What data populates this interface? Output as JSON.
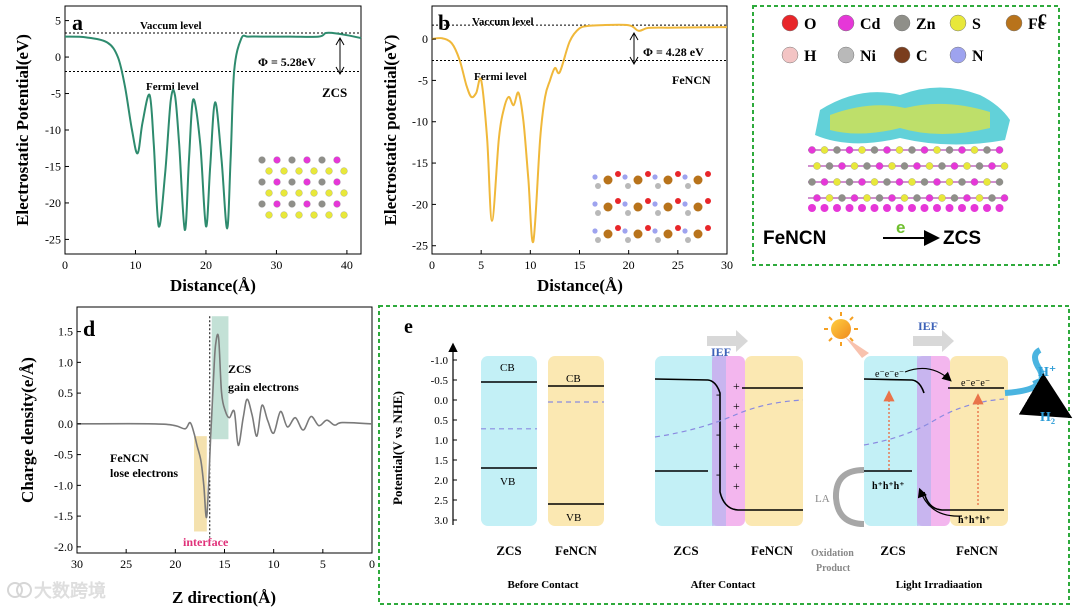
{
  "watermark": "大数跨境",
  "chart_data": [
    {
      "panel": "a",
      "type": "line",
      "xlabel": "Distance(Å)",
      "ylabel": "Electrostatic Potential(eV)",
      "xlim": [
        0,
        42
      ],
      "ylim": [
        -27,
        7
      ],
      "xticks": [
        "0",
        "10",
        "20",
        "30",
        "40"
      ],
      "yticks": [
        "-25",
        "-20",
        "-15",
        "-10",
        "-5",
        "0",
        "5"
      ],
      "annotations": {
        "vacuum": "Vaccum level",
        "fermi": "Fermi level",
        "work_function": "Φ = 5.28eV",
        "material": "ZCS"
      },
      "vacuum_level": 3.3,
      "fermi_level": -1.98,
      "color": "#2e8b6e",
      "x": [
        0,
        3,
        6,
        7.5,
        8.5,
        9.5,
        10.3,
        11,
        12,
        12.6,
        13.3,
        14.2,
        15,
        15.6,
        16.2,
        17,
        17.6,
        18.2,
        19.2,
        20,
        20.6,
        21.3,
        22.2,
        23,
        23.5,
        24,
        25,
        26,
        28,
        32,
        36,
        37,
        38,
        40,
        42
      ],
      "y": [
        2.8,
        2.7,
        2,
        0,
        -4,
        -10,
        -13.2,
        -9,
        -5.2,
        -12,
        -23.2,
        -16,
        -6,
        -5.2,
        -12,
        -23.7,
        -14,
        -5.8,
        -12,
        -23.2,
        -15,
        -6.2,
        -14,
        -23.5,
        -14,
        -2,
        2.5,
        2.8,
        2.8,
        2.8,
        2.8,
        3.3,
        3.3,
        3.0,
        2.6
      ]
    },
    {
      "panel": "b",
      "type": "line",
      "xlabel": "Distance(Å)",
      "ylabel": "Electrostatic potential(eV)",
      "xlim": [
        0,
        30
      ],
      "ylim": [
        -26,
        4
      ],
      "xticks": [
        "0",
        "5",
        "10",
        "15",
        "20",
        "25",
        "30"
      ],
      "yticks": [
        "-25",
        "-20",
        "-15",
        "-10",
        "-5",
        "0"
      ],
      "annotations": {
        "vacuum": "Vaccum level",
        "fermi": "Fermi level",
        "work_function": "Φ = 4.28 eV",
        "material": "FeNCN"
      },
      "vacuum_level": 1.68,
      "fermi_level": -2.6,
      "color": "#f0b83a",
      "x": [
        0,
        1,
        2,
        2.8,
        3.5,
        4,
        4.5,
        5,
        5.6,
        6.1,
        6.8,
        7.3,
        7.8,
        8.3,
        8.8,
        9.3,
        9.8,
        10.3,
        11,
        11.5,
        12,
        12.5,
        13,
        14,
        15,
        16,
        17,
        20,
        21,
        22,
        24,
        26,
        28,
        30
      ],
      "y": [
        0,
        0.1,
        -0.5,
        -2.5,
        -5.6,
        -7,
        -6.5,
        -5,
        -12,
        -22,
        -12,
        -8.5,
        -7,
        -8,
        -6.5,
        -10,
        -17,
        -24.5,
        -12,
        -7,
        -5,
        -3.5,
        -4,
        -0.3,
        1.3,
        1.6,
        1.68,
        1.68,
        1.0,
        1.35,
        1.38,
        1.4,
        1.42,
        1.45
      ]
    },
    {
      "panel": "d",
      "type": "line",
      "xlabel": "Z direction(Å)",
      "ylabel": "Charge density(e/Å)",
      "xlim": [
        30,
        0
      ],
      "ylim": [
        -2.1,
        1.9
      ],
      "xticks": [
        "30",
        "25",
        "20",
        "15",
        "10",
        "5",
        "0"
      ],
      "yticks": [
        "-2.0",
        "-1.5",
        "-1.0",
        "-0.5",
        "0.0",
        "0.5",
        "1.0",
        "1.5"
      ],
      "annotations": {
        "left_region": [
          "FeNCN",
          "lose electrons"
        ],
        "right_region": [
          "ZCS",
          "gain  electrons"
        ],
        "interface": "interface"
      },
      "color": "#7a7a7a",
      "x": [
        30,
        22,
        20,
        19,
        18.5,
        18.1,
        17.8,
        17.4,
        17.1,
        16.8,
        16.4,
        16.1,
        15.9,
        15.6,
        15.3,
        14.9,
        14.5,
        14,
        13.6,
        13.1,
        12.7,
        12.2,
        11.7,
        11.2,
        10.6,
        10,
        9.3,
        8.6,
        7.8,
        7,
        6.2,
        5.4,
        4.6,
        3.8,
        3,
        0
      ],
      "y": [
        0,
        0,
        -0.03,
        -0.08,
        0.02,
        -0.15,
        -0.35,
        -0.6,
        -1.0,
        -1.5,
        -0.2,
        0.8,
        1.3,
        1.4,
        0.5,
        0.2,
        0.1,
        0.2,
        -0.35,
        0.1,
        0.4,
        0.15,
        -0.2,
        0.3,
        0.05,
        -0.15,
        0.2,
        -0.05,
        0.1,
        -0.1,
        0.12,
        -0.03,
        0.06,
        -0.02,
        0.02,
        0
      ]
    },
    {
      "panel": "e",
      "type": "diagram",
      "ylabel": "Potential(V vs NHE)",
      "yticks": [
        "-1.0",
        "-0.5",
        "0.0",
        "0.5",
        "1.0",
        "1.5",
        "2.0",
        "2.5",
        "3.0"
      ],
      "ylim": [
        -1.0,
        3.0
      ],
      "materials": [
        "ZCS",
        "FeNCN"
      ],
      "band_labels": {
        "cb": "CB",
        "vb": "VB",
        "ief": "IEF"
      },
      "before_contact": {
        "zcs_cb": -0.45,
        "zcs_vb": 1.7,
        "zcs_ef": 0.72,
        "fencn_cb": -0.35,
        "fencn_vb": 2.6,
        "fencn_ef": 0.05
      },
      "stages": [
        "Before Contact",
        "After Contact",
        "Light Irradiaation"
      ],
      "species": {
        "electrons": "e⁻e⁻e⁻",
        "holes": "h⁺h⁺h⁺",
        "proton": "H⁺",
        "hydrogen": "H₂",
        "sacrificial": "LA",
        "oxidation": [
          "Oxidation",
          "Product"
        ]
      }
    }
  ],
  "panel_c": {
    "legend": [
      {
        "symbol": "O",
        "color": "#e8262a"
      },
      {
        "symbol": "Cd",
        "color": "#e637d8"
      },
      {
        "symbol": "Zn",
        "color": "#8f8f89"
      },
      {
        "symbol": "S",
        "color": "#e8e83a"
      },
      {
        "symbol": "Fe",
        "color": "#b8731b"
      },
      {
        "symbol": "H",
        "color": "#f3c4c4"
      },
      {
        "symbol": "Ni",
        "color": "#b9b9b9"
      },
      {
        "symbol": "C",
        "color": "#7a3d1e"
      },
      {
        "symbol": "N",
        "color": "#9ea3ef"
      }
    ],
    "donor": "FeNCN",
    "acceptor": "ZCS",
    "electron_label": "e"
  },
  "panel_letters": [
    "a",
    "b",
    "c",
    "d",
    "e"
  ]
}
